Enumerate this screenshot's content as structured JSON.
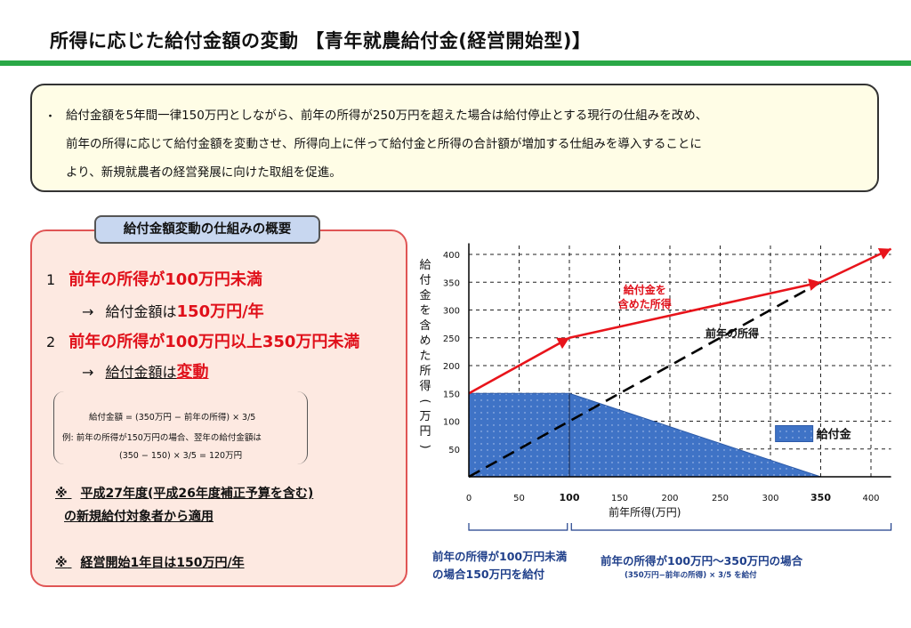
{
  "title": "所得に応じた給付金額の変動 【青年就農給付金(経営開始型)】",
  "summary": {
    "bullet": "・",
    "lines": [
      "給付金額を5年間一律150万円としながら、前年の所得が250万円を超えた場合は給付停止とする現行の仕組みを改め、",
      "前年の所得に応じて給付金額を変動させ、所得向上に伴って給付金と所得の合計額が増加する仕組みを導入することに",
      "より、新規就農者の経営発展に向けた取組を促進。"
    ]
  },
  "mechanism": {
    "title": "給付金額変動の仕組みの概要",
    "item1": {
      "num": "1",
      "cond": "前年の所得が100万円未満",
      "arrow": "→",
      "label": "給付金額は",
      "amount": "150万円/年"
    },
    "item2": {
      "num": "2",
      "cond": "前年の所得が100万円以上350万円未満",
      "arrow": "→",
      "label": "給付金額は",
      "amount": "変動"
    },
    "formula": {
      "line1": "給付金額 = (350万円 − 前年の所得) × 3/5",
      "line2": "例: 前年の所得が150万円の場合、翌年の給付金額は",
      "line3": "(350 − 150) × 3/5 = 120万円"
    },
    "note1": {
      "mark": "※",
      "line1": "平成27年度(平成26年度補正予算を含む)",
      "line2": "の新規給付対象者から適用"
    },
    "note2": {
      "mark": "※",
      "text": "経営開始1年目は150万円/年"
    }
  },
  "chart_data": {
    "type": "area",
    "ylabel": "給付金を含めた所得(万円)",
    "xlabel": "前年所得(万円)",
    "xticks": [
      "0",
      "50",
      "100",
      "150",
      "200",
      "250",
      "300",
      "350",
      "400"
    ],
    "yticks": [
      "50",
      "100",
      "150",
      "200",
      "250",
      "300",
      "350",
      "400"
    ],
    "xlim": [
      0,
      420
    ],
    "ylim": [
      0,
      420
    ],
    "grid": true,
    "series": [
      {
        "name": "給付金",
        "points": [
          [
            0,
            150
          ],
          [
            100,
            150
          ],
          [
            350,
            0
          ]
        ],
        "color": "#3f73c6"
      },
      {
        "name": "給付金を含めた所得",
        "points": [
          [
            0,
            150
          ],
          [
            100,
            250
          ],
          [
            350,
            350
          ],
          [
            420,
            410
          ]
        ],
        "color": "#e8141b"
      },
      {
        "name": "前年の所得",
        "points": [
          [
            0,
            0
          ],
          [
            350,
            350
          ]
        ],
        "color": "#000000"
      }
    ],
    "annotations": {
      "income_with_benefit": "給付金を\n含めた所得",
      "prev_income": "前年の所得",
      "legend_benefit": "給付金"
    },
    "captions": {
      "left_line1": "前年の所得が100万円未満",
      "left_line2": "の場合150万円を給付",
      "right_line1": "前年の所得が100万円〜350万円の場合",
      "right_line2": "(350万円−前年の所得) × 3/5 を給付"
    }
  }
}
